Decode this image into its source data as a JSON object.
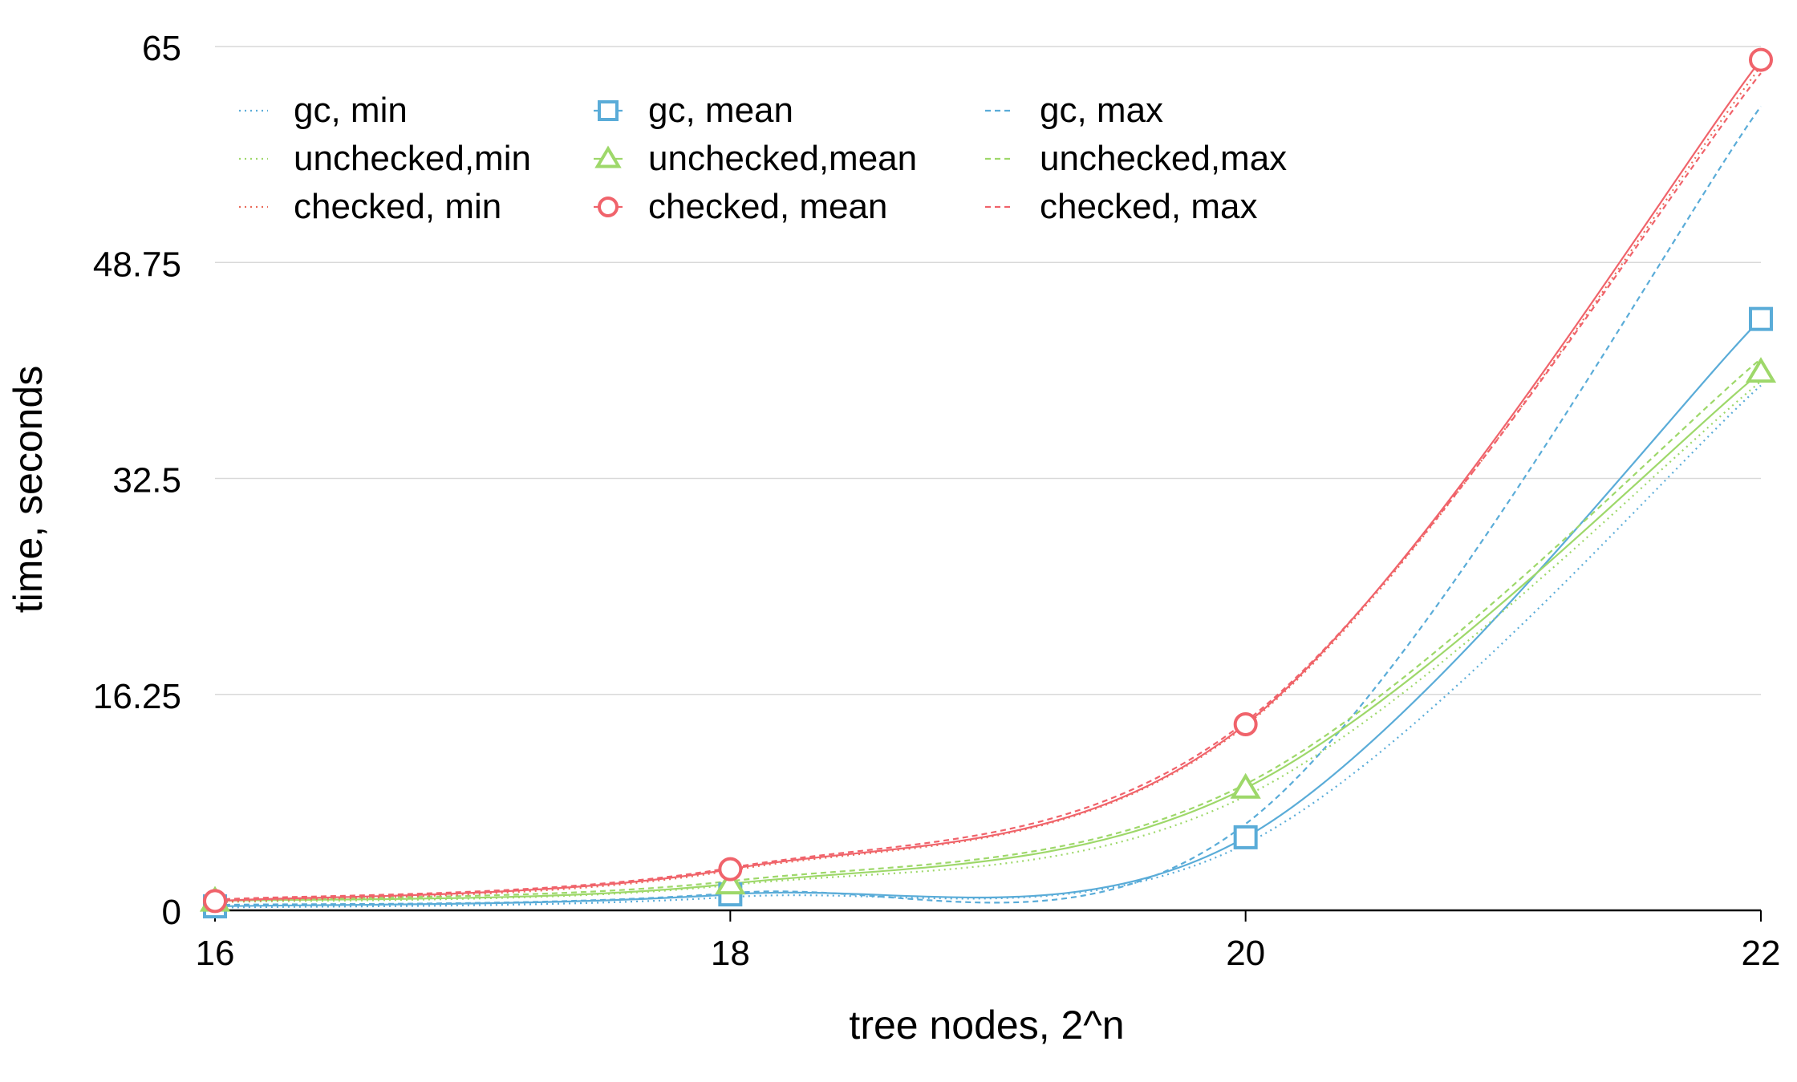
{
  "chart_data": {
    "type": "line",
    "title": "",
    "xlabel": "tree nodes, 2^n",
    "ylabel": "time, seconds",
    "x": [
      16,
      18,
      20,
      22
    ],
    "x_ticks": [
      "16",
      "18",
      "20",
      "22"
    ],
    "y_ticks": [
      "0",
      "16.25",
      "32.5",
      "48.75",
      "65"
    ],
    "y_tick_values": [
      0,
      16.25,
      32.5,
      48.75,
      65
    ],
    "xlim": [
      16,
      22
    ],
    "ylim": [
      0,
      65
    ],
    "grid": "horizontal",
    "legend_position": "top-left",
    "series": [
      {
        "name": "gc, min",
        "values": [
          0.2,
          1.0,
          5.0,
          39.5
        ],
        "color": "#5aacd8",
        "style": "dotted",
        "marker": "none"
      },
      {
        "name": "gc, mean",
        "values": [
          0.3,
          1.2,
          5.5,
          44.5
        ],
        "color": "#5aacd8",
        "style": "solid",
        "marker": "square"
      },
      {
        "name": "gc, max",
        "values": [
          0.4,
          1.3,
          6.5,
          60.5
        ],
        "color": "#5aacd8",
        "style": "dashed",
        "marker": "none"
      },
      {
        "name": "unchecked,min",
        "values": [
          0.6,
          1.9,
          8.6,
          39.8
        ],
        "color": "#9ed86a",
        "style": "dotted",
        "marker": "none"
      },
      {
        "name": "unchecked,mean",
        "values": [
          0.7,
          2.0,
          9.2,
          40.5
        ],
        "color": "#9ed86a",
        "style": "solid",
        "marker": "triangle"
      },
      {
        "name": "unchecked,max",
        "values": [
          0.8,
          2.2,
          9.5,
          41.5
        ],
        "color": "#9ed86a",
        "style": "dashed",
        "marker": "none"
      },
      {
        "name": "checked, min",
        "values": [
          0.6,
          3.0,
          13.9,
          63.5
        ],
        "color": "#ea6b5a",
        "style": "dotted",
        "marker": "none"
      },
      {
        "name": "checked, mean",
        "values": [
          0.7,
          3.1,
          14.0,
          64.0
        ],
        "color": "#f0636b",
        "style": "solid",
        "marker": "circle"
      },
      {
        "name": "checked, max",
        "values": [
          0.8,
          3.2,
          14.2,
          63.0
        ],
        "color": "#f0636b",
        "style": "dashed",
        "marker": "none"
      }
    ],
    "legend_order": [
      [
        "gc, min",
        "gc, mean",
        "gc, max"
      ],
      [
        "unchecked,min",
        "unchecked,mean",
        "unchecked,max"
      ],
      [
        "checked, min",
        "checked, mean",
        "checked, max"
      ]
    ]
  }
}
